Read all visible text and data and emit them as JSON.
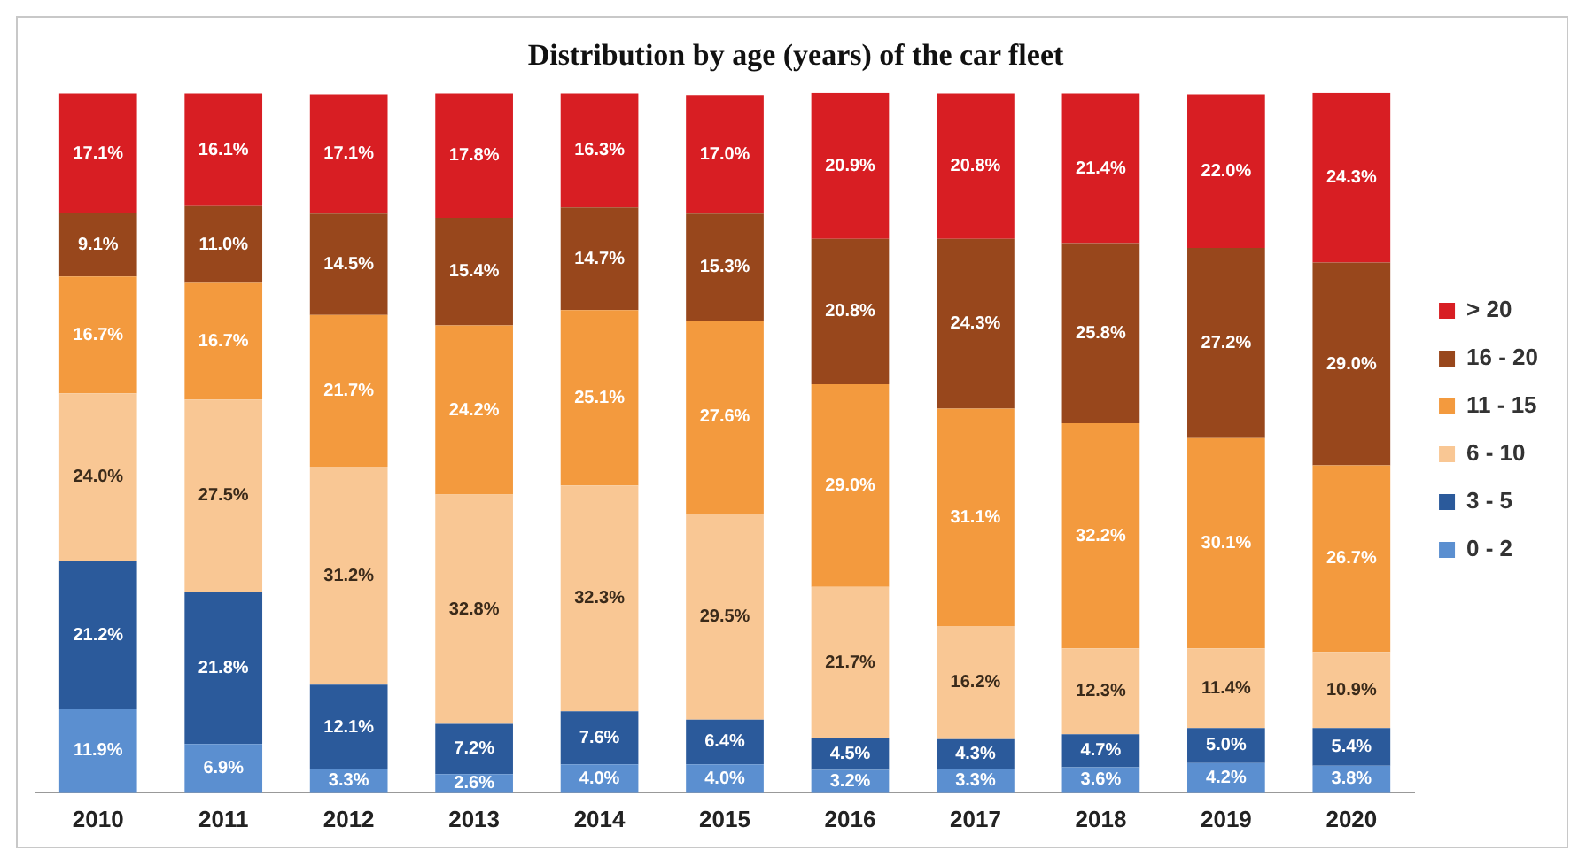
{
  "chart_data": {
    "type": "bar",
    "title": "Distribution by age (years) of the car fleet",
    "categories": [
      "2010",
      "2011",
      "2012",
      "2013",
      "2014",
      "2015",
      "2016",
      "2017",
      "2018",
      "2019",
      "2020"
    ],
    "stacked": true,
    "ylim": [
      0,
      100.1
    ],
    "tick_labels": "x",
    "grid": false,
    "legend": "right",
    "series": [
      {
        "name": "0 - 2",
        "color": "#5b8fd0",
        "values": [
          11.9,
          6.9,
          3.3,
          2.6,
          4.0,
          4.0,
          3.2,
          3.3,
          3.6,
          4.2,
          3.8
        ],
        "value_labels": [
          "11.9%",
          "6.9%",
          "3.3%",
          "2.6%",
          "4.0%",
          "4.0%",
          "3.2%",
          "3.3%",
          "3.6%",
          "4.2%",
          "3.8%"
        ]
      },
      {
        "name": "3 - 5",
        "color": "#2b5a9b",
        "values": [
          21.2,
          21.8,
          12.1,
          7.2,
          7.6,
          6.4,
          4.5,
          4.3,
          4.7,
          5.0,
          5.4
        ],
        "value_labels": [
          "21.2%",
          "21.8%",
          "12.1%",
          "7.2%",
          "7.6%",
          "6.4%",
          "4.5%",
          "4.3%",
          "4.7%",
          "5.0%",
          "5.4%"
        ]
      },
      {
        "name": "6 - 10",
        "color": "#f9c794",
        "values": [
          24.0,
          27.5,
          31.2,
          32.8,
          32.3,
          29.5,
          21.7,
          16.2,
          12.3,
          11.4,
          10.9
        ],
        "value_labels": [
          "24.0%",
          "27.5%",
          "31.2%",
          "32.8%",
          "32.3%",
          "29.5%",
          "21.7%",
          "16.2%",
          "12.3%",
          "11.4%",
          "10.9%"
        ]
      },
      {
        "name": "11 - 15",
        "color": "#f39a3e",
        "values": [
          16.7,
          16.7,
          21.7,
          24.2,
          25.1,
          27.6,
          29.0,
          31.1,
          32.2,
          30.1,
          26.7
        ],
        "value_labels": [
          "16.7%",
          "16.7%",
          "21.7%",
          "24.2%",
          "25.1%",
          "27.6%",
          "29.0%",
          "31.1%",
          "32.2%",
          "30.1%",
          "26.7%"
        ]
      },
      {
        "name": "16 - 20",
        "color": "#98471c",
        "values": [
          9.1,
          11.0,
          14.5,
          15.4,
          14.7,
          15.3,
          20.8,
          24.3,
          25.8,
          27.2,
          29.0
        ],
        "value_labels": [
          "9.1%",
          "11.0%",
          "14.5%",
          "15.4%",
          "14.7%",
          "15.3%",
          "20.8%",
          "24.3%",
          "25.8%",
          "27.2%",
          "29.0%"
        ]
      },
      {
        "name": "> 20",
        "color": "#d81e23",
        "values": [
          17.1,
          16.1,
          17.1,
          17.8,
          16.3,
          17.0,
          20.9,
          20.8,
          21.4,
          22.0,
          24.3
        ],
        "value_labels": [
          "17.1%",
          "16.1%",
          "17.1%",
          "17.8%",
          "16.3%",
          "17.0%",
          "20.9%",
          "20.8%",
          "21.4%",
          "22.0%",
          "24.3%"
        ]
      }
    ]
  }
}
